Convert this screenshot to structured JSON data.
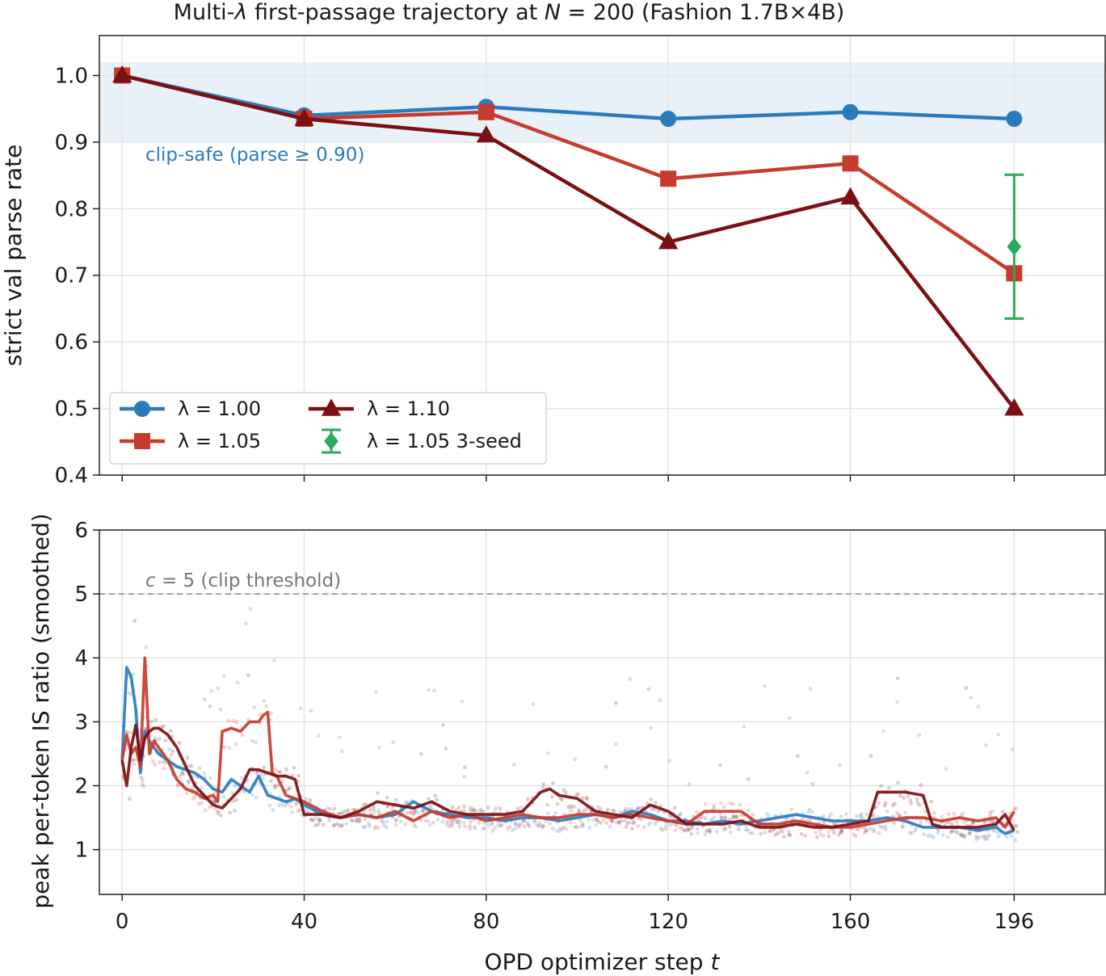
{
  "title": "Multi-λ first-passage trajectory at N = 200 (Fashion 1.7B×4B)",
  "colors": {
    "lambda_100": "#2a7bbd",
    "lambda_105": "#c83a2e",
    "lambda_110": "#7a1013",
    "three_seed": "#2aaa5a",
    "safe_band": "#e9f1f8",
    "grid": "#e5e5e5"
  },
  "chart_data": [
    {
      "type": "line",
      "title": "Multi-λ first-passage trajectory at N = 200 (Fashion 1.7B×4B)",
      "xlabel": "",
      "ylabel": "strict val parse rate",
      "x_ticks": [
        "0",
        "40",
        "80",
        "120",
        "160",
        "196"
      ],
      "xlim": [
        -5,
        216
      ],
      "ylim": [
        0.4,
        1.06
      ],
      "y_ticks": [
        "0.4",
        "0.5",
        "0.6",
        "0.7",
        "0.8",
        "0.9",
        "1.0"
      ],
      "grid": true,
      "legend_position": "lower-left",
      "band": {
        "from": 0.9,
        "to": 1.02,
        "label": "clip-safe (parse ≥ 0.90)"
      },
      "series": [
        {
          "name": "λ = 1.00",
          "marker": "circle",
          "x": [
            0,
            40,
            80,
            120,
            160,
            196
          ],
          "values": [
            1.0,
            0.94,
            0.953,
            0.935,
            0.945,
            0.935
          ]
        },
        {
          "name": "λ = 1.05",
          "marker": "square",
          "x": [
            0,
            40,
            80,
            120,
            160,
            196
          ],
          "values": [
            1.0,
            0.935,
            0.945,
            0.845,
            0.868,
            0.703
          ]
        },
        {
          "name": "λ = 1.10",
          "marker": "triangle",
          "x": [
            0,
            40,
            80,
            120,
            160,
            196
          ],
          "values": [
            1.0,
            0.935,
            0.91,
            0.75,
            0.817,
            0.5
          ]
        },
        {
          "name": "λ = 1.05 3-seed",
          "marker": "diamond",
          "x": [
            196
          ],
          "values": [
            0.743
          ],
          "error": [
            0.108
          ]
        }
      ]
    },
    {
      "type": "line",
      "xlabel": "OPD optimizer step t",
      "ylabel": "peak per-token IS ratio (smoothed)",
      "x_ticks": [
        "0",
        "40",
        "80",
        "120",
        "160",
        "196"
      ],
      "xlim": [
        -5,
        216
      ],
      "ylim": [
        0.3,
        6.0
      ],
      "y_ticks": [
        "1",
        "2",
        "3",
        "4",
        "5",
        "6"
      ],
      "grid": true,
      "threshold": {
        "value": 5,
        "label": "c = 5 (clip threshold)"
      },
      "series": [
        {
          "name": "λ = 1.00",
          "x": [
            0,
            1,
            2,
            3,
            4,
            5,
            6,
            7,
            8,
            10,
            12,
            14,
            16,
            18,
            20,
            22,
            24,
            26,
            28,
            30,
            32,
            34,
            36,
            38,
            40,
            44,
            48,
            52,
            56,
            60,
            64,
            68,
            72,
            76,
            80,
            84,
            88,
            92,
            96,
            100,
            104,
            108,
            112,
            116,
            120,
            124,
            128,
            132,
            136,
            140,
            144,
            148,
            152,
            156,
            160,
            164,
            168,
            172,
            176,
            180,
            184,
            188,
            192,
            194,
            196
          ],
          "values": [
            2.4,
            3.85,
            3.7,
            3.2,
            2.2,
            2.85,
            2.7,
            2.6,
            2.5,
            2.4,
            2.3,
            2.25,
            2.2,
            2.1,
            1.95,
            1.9,
            2.1,
            2.0,
            1.9,
            2.15,
            1.85,
            1.8,
            1.75,
            1.8,
            1.7,
            1.55,
            1.5,
            1.55,
            1.5,
            1.55,
            1.75,
            1.6,
            1.55,
            1.5,
            1.5,
            1.45,
            1.5,
            1.5,
            1.45,
            1.5,
            1.55,
            1.5,
            1.6,
            1.55,
            1.45,
            1.45,
            1.4,
            1.45,
            1.4,
            1.45,
            1.5,
            1.55,
            1.5,
            1.45,
            1.45,
            1.45,
            1.5,
            1.45,
            1.35,
            1.35,
            1.35,
            1.3,
            1.35,
            1.25,
            1.3
          ]
        },
        {
          "name": "λ = 1.05",
          "x": [
            0,
            1,
            2,
            3,
            4,
            5,
            6,
            7,
            8,
            10,
            12,
            14,
            16,
            18,
            20,
            21,
            22,
            24,
            26,
            28,
            30,
            31,
            32,
            33,
            34,
            36,
            38,
            40,
            44,
            48,
            52,
            56,
            60,
            64,
            68,
            72,
            76,
            80,
            84,
            88,
            92,
            96,
            100,
            104,
            108,
            112,
            116,
            120,
            124,
            128,
            132,
            136,
            140,
            144,
            148,
            152,
            156,
            160,
            164,
            168,
            172,
            176,
            180,
            184,
            188,
            192,
            194,
            196
          ],
          "values": [
            2.4,
            2.8,
            2.5,
            2.6,
            2.3,
            4.0,
            2.5,
            2.7,
            2.6,
            2.4,
            2.1,
            1.95,
            1.9,
            1.8,
            1.85,
            1.75,
            2.85,
            2.9,
            2.85,
            3.0,
            3.0,
            3.1,
            3.15,
            2.2,
            2.15,
            1.85,
            1.8,
            1.75,
            1.6,
            1.5,
            1.55,
            1.5,
            1.6,
            1.45,
            1.6,
            1.5,
            1.55,
            1.45,
            1.5,
            1.55,
            1.5,
            1.5,
            1.55,
            1.55,
            1.5,
            1.55,
            1.5,
            1.45,
            1.4,
            1.6,
            1.6,
            1.6,
            1.4,
            1.4,
            1.45,
            1.4,
            1.35,
            1.35,
            1.4,
            1.45,
            1.5,
            1.5,
            1.45,
            1.5,
            1.45,
            1.5,
            1.35,
            1.6
          ]
        },
        {
          "name": "λ = 1.10",
          "x": [
            0,
            1,
            2,
            3,
            4,
            5,
            6,
            7,
            8,
            10,
            12,
            14,
            16,
            18,
            20,
            22,
            24,
            26,
            28,
            30,
            32,
            34,
            36,
            38,
            40,
            44,
            48,
            52,
            56,
            60,
            64,
            68,
            72,
            76,
            80,
            84,
            88,
            92,
            94,
            96,
            100,
            104,
            108,
            112,
            116,
            120,
            124,
            128,
            132,
            136,
            140,
            144,
            148,
            152,
            156,
            160,
            164,
            166,
            168,
            172,
            176,
            178,
            180,
            184,
            188,
            192,
            194,
            196
          ],
          "values": [
            2.4,
            2.0,
            2.6,
            2.95,
            2.4,
            2.75,
            2.85,
            2.9,
            2.9,
            2.8,
            2.6,
            2.3,
            2.0,
            1.85,
            1.7,
            1.65,
            1.8,
            1.95,
            2.25,
            2.25,
            2.2,
            2.15,
            2.15,
            2.1,
            1.55,
            1.55,
            1.5,
            1.6,
            1.75,
            1.7,
            1.65,
            1.75,
            1.6,
            1.55,
            1.55,
            1.55,
            1.6,
            1.9,
            1.95,
            1.85,
            1.8,
            1.6,
            1.55,
            1.5,
            1.7,
            1.6,
            1.4,
            1.4,
            1.4,
            1.45,
            1.35,
            1.35,
            1.4,
            1.35,
            1.35,
            1.4,
            1.45,
            1.9,
            1.9,
            1.9,
            1.85,
            1.4,
            1.35,
            1.35,
            1.35,
            1.4,
            1.55,
            1.3
          ]
        }
      ]
    }
  ]
}
